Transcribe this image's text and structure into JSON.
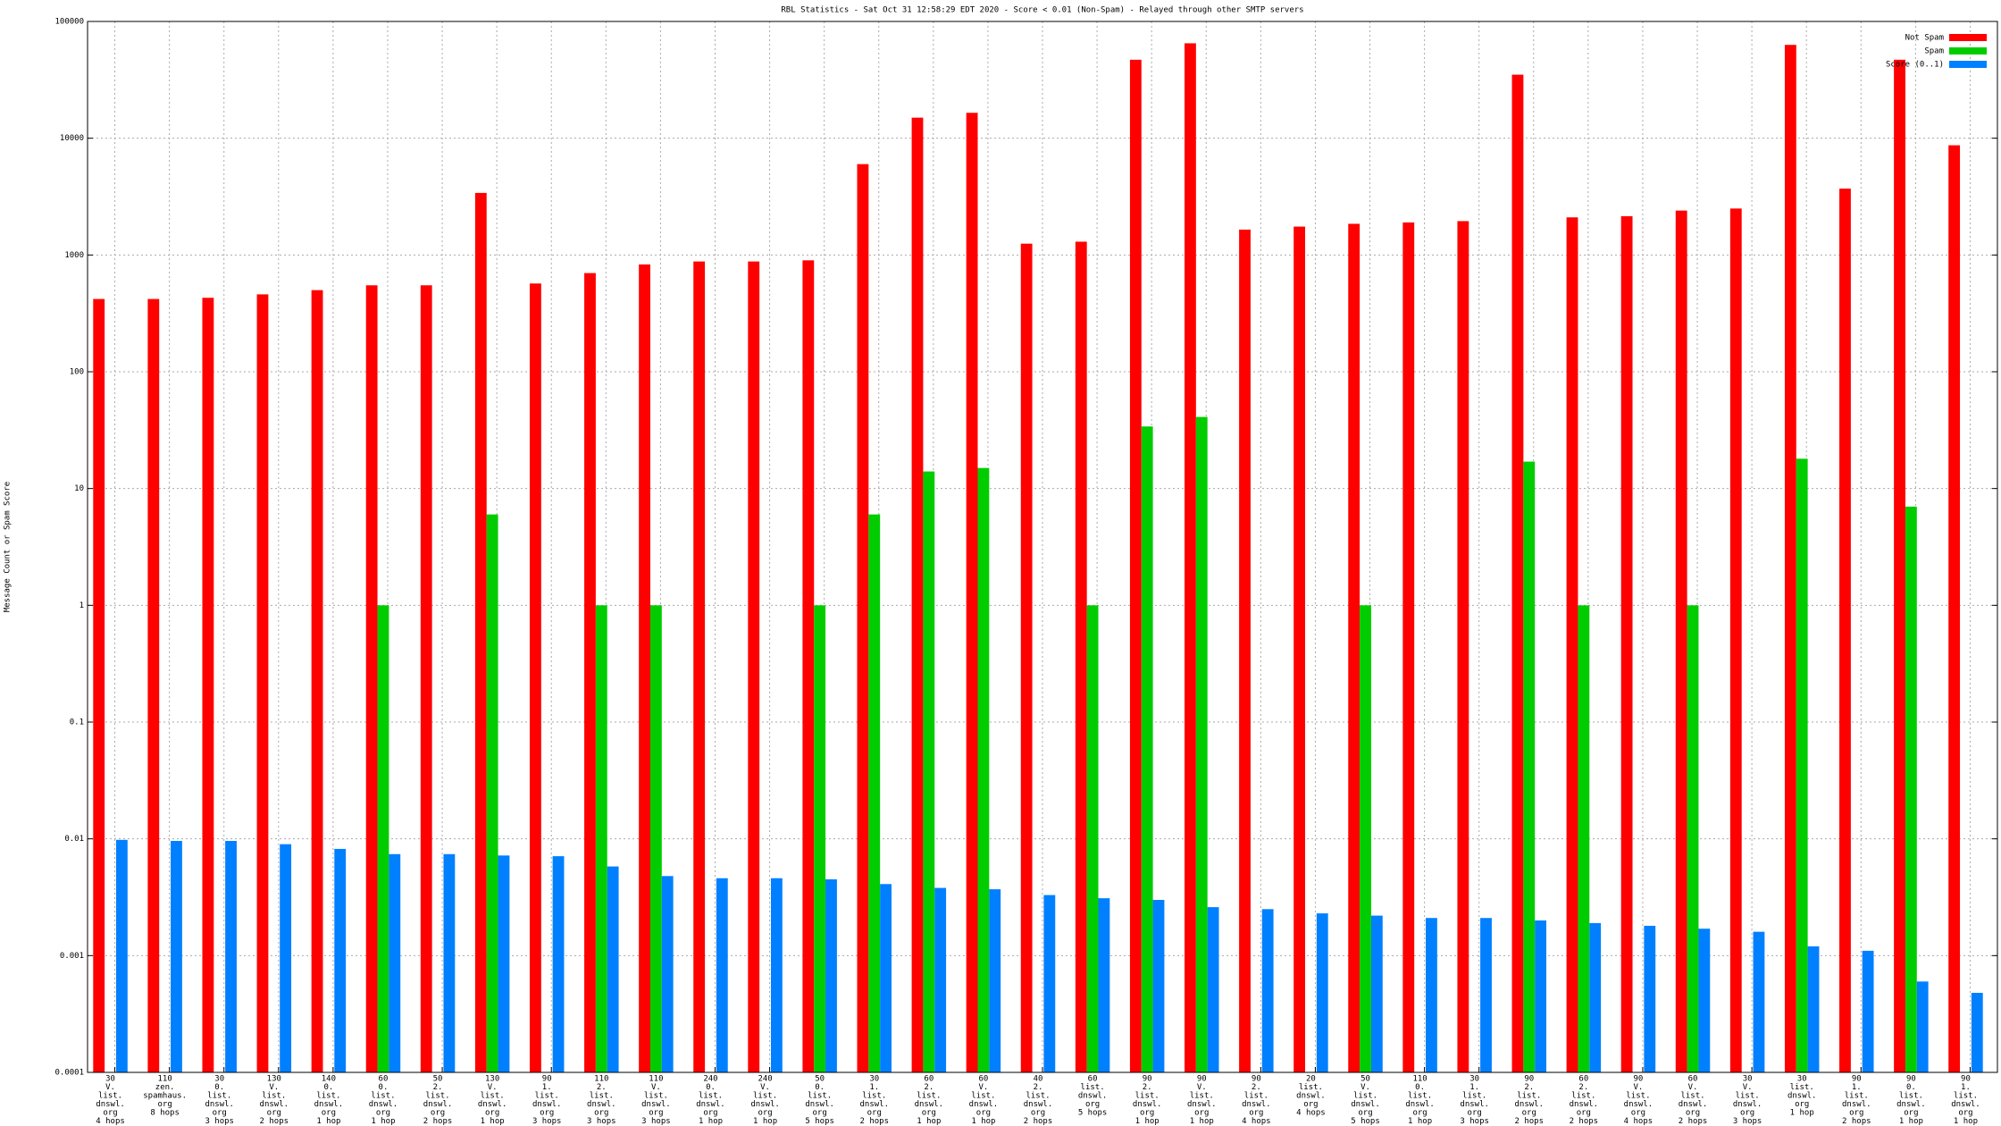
{
  "chart_data": {
    "type": "bar",
    "log_scale": true,
    "grid": true,
    "legend": "top-right",
    "title": "RBL Statistics - Sat Oct 31 12:58:29 EDT 2020 - Score < 0.01 (Non-Spam) - Relayed through other SMTP servers",
    "y_label": "Message Count or Spam Score",
    "ylim": [
      0.0001,
      100000
    ],
    "yticks": [
      0.0001,
      0.001,
      0.01,
      0.1,
      1,
      10,
      100,
      1000,
      10000,
      100000
    ],
    "categories": [
      [
        "30",
        "V.",
        "list.",
        "dnswl.",
        "org",
        "4 hops"
      ],
      [
        "110",
        "zen.",
        "spamhaus.",
        "org",
        "8 hops"
      ],
      [
        "30",
        "0.",
        "list.",
        "dnswl.",
        "org",
        "3 hops"
      ],
      [
        "130",
        "V.",
        "list.",
        "dnswl.",
        "org",
        "2 hops"
      ],
      [
        "140",
        "0.",
        "list.",
        "dnswl.",
        "org",
        "1 hop"
      ],
      [
        "60",
        "0.",
        "list.",
        "dnswl.",
        "org",
        "1 hop"
      ],
      [
        "50",
        "2.",
        "list.",
        "dnswl.",
        "org",
        "2 hops"
      ],
      [
        "130",
        "V.",
        "list.",
        "dnswl.",
        "org",
        "1 hop"
      ],
      [
        "90",
        "1.",
        "list.",
        "dnswl.",
        "org",
        "3 hops"
      ],
      [
        "110",
        "2.",
        "list.",
        "dnswl.",
        "org",
        "3 hops"
      ],
      [
        "110",
        "V.",
        "list.",
        "dnswl.",
        "org",
        "3 hops"
      ],
      [
        "240",
        "0.",
        "list.",
        "dnswl.",
        "org",
        "1 hop"
      ],
      [
        "240",
        "V.",
        "list.",
        "dnswl.",
        "org",
        "1 hop"
      ],
      [
        "50",
        "0.",
        "list.",
        "dnswl.",
        "org",
        "5 hops"
      ],
      [
        "30",
        "1.",
        "list.",
        "dnswl.",
        "org",
        "2 hops"
      ],
      [
        "60",
        "2.",
        "list.",
        "dnswl.",
        "org",
        "1 hop"
      ],
      [
        "60",
        "V.",
        "list.",
        "dnswl.",
        "org",
        "1 hop"
      ],
      [
        "40",
        "2.",
        "list.",
        "dnswl.",
        "org",
        "2 hops"
      ],
      [
        "60",
        "list.",
        "dnswl.",
        "org",
        "5 hops"
      ],
      [
        "90",
        "2.",
        "list.",
        "dnswl.",
        "org",
        "1 hop"
      ],
      [
        "90",
        "V.",
        "list.",
        "dnswl.",
        "org",
        "1 hop"
      ],
      [
        "90",
        "2.",
        "list.",
        "dnswl.",
        "org",
        "4 hops"
      ],
      [
        "20",
        "list.",
        "dnswl.",
        "org",
        "4 hops"
      ],
      [
        "50",
        "V.",
        "list.",
        "dnswl.",
        "org",
        "5 hops"
      ],
      [
        "110",
        "0.",
        "list.",
        "dnswl.",
        "org",
        "1 hop"
      ],
      [
        "30",
        "1.",
        "list.",
        "dnswl.",
        "org",
        "3 hops"
      ],
      [
        "90",
        "2.",
        "list.",
        "dnswl.",
        "org",
        "2 hops"
      ],
      [
        "60",
        "2.",
        "list.",
        "dnswl.",
        "org",
        "2 hops"
      ],
      [
        "90",
        "V.",
        "list.",
        "dnswl.",
        "org",
        "4 hops"
      ],
      [
        "60",
        "V.",
        "list.",
        "dnswl.",
        "org",
        "2 hops"
      ],
      [
        "30",
        "V.",
        "list.",
        "dnswl.",
        "org",
        "3 hops"
      ],
      [
        "30",
        "list.",
        "dnswl.",
        "org",
        "1 hop"
      ],
      [
        "90",
        "1.",
        "list.",
        "dnswl.",
        "org",
        "2 hops"
      ],
      [
        "90",
        "0.",
        "list.",
        "dnswl.",
        "org",
        "1 hop"
      ],
      [
        "90",
        "1.",
        "list.",
        "dnswl.",
        "org",
        "1 hop"
      ]
    ],
    "series": [
      {
        "name": "Not Spam",
        "color": "#ff0000",
        "values": [
          420,
          420,
          430,
          460,
          500,
          550,
          550,
          3400,
          570,
          700,
          830,
          880,
          880,
          900,
          6000,
          15000,
          16500,
          1250,
          1300,
          47000,
          65000,
          1650,
          1750,
          1850,
          1900,
          1950,
          35000,
          2100,
          2150,
          2400,
          2500,
          63000,
          3700,
          47000,
          8700
        ]
      },
      {
        "name": "Spam",
        "color": "#00cc00",
        "values": [
          null,
          null,
          null,
          null,
          null,
          1,
          null,
          6,
          null,
          1,
          1,
          null,
          null,
          1,
          6,
          14,
          15,
          null,
          1,
          34,
          41,
          null,
          null,
          1,
          null,
          null,
          17,
          1,
          null,
          1,
          null,
          18,
          null,
          7,
          null
        ]
      },
      {
        "name": "Score (0..1)",
        "color": "#0080ff",
        "values": [
          0.0098,
          0.0096,
          0.0096,
          0.009,
          0.0082,
          0.0074,
          0.0074,
          0.0072,
          0.0071,
          0.0058,
          0.0048,
          0.0046,
          0.0046,
          0.0045,
          0.0041,
          0.0038,
          0.0037,
          0.0033,
          0.0031,
          0.003,
          0.0026,
          0.0025,
          0.0023,
          0.0022,
          0.0021,
          0.0021,
          0.002,
          0.0019,
          0.0018,
          0.0017,
          0.0016,
          0.0012,
          0.0011,
          0.0006,
          0.00048
        ]
      }
    ]
  }
}
